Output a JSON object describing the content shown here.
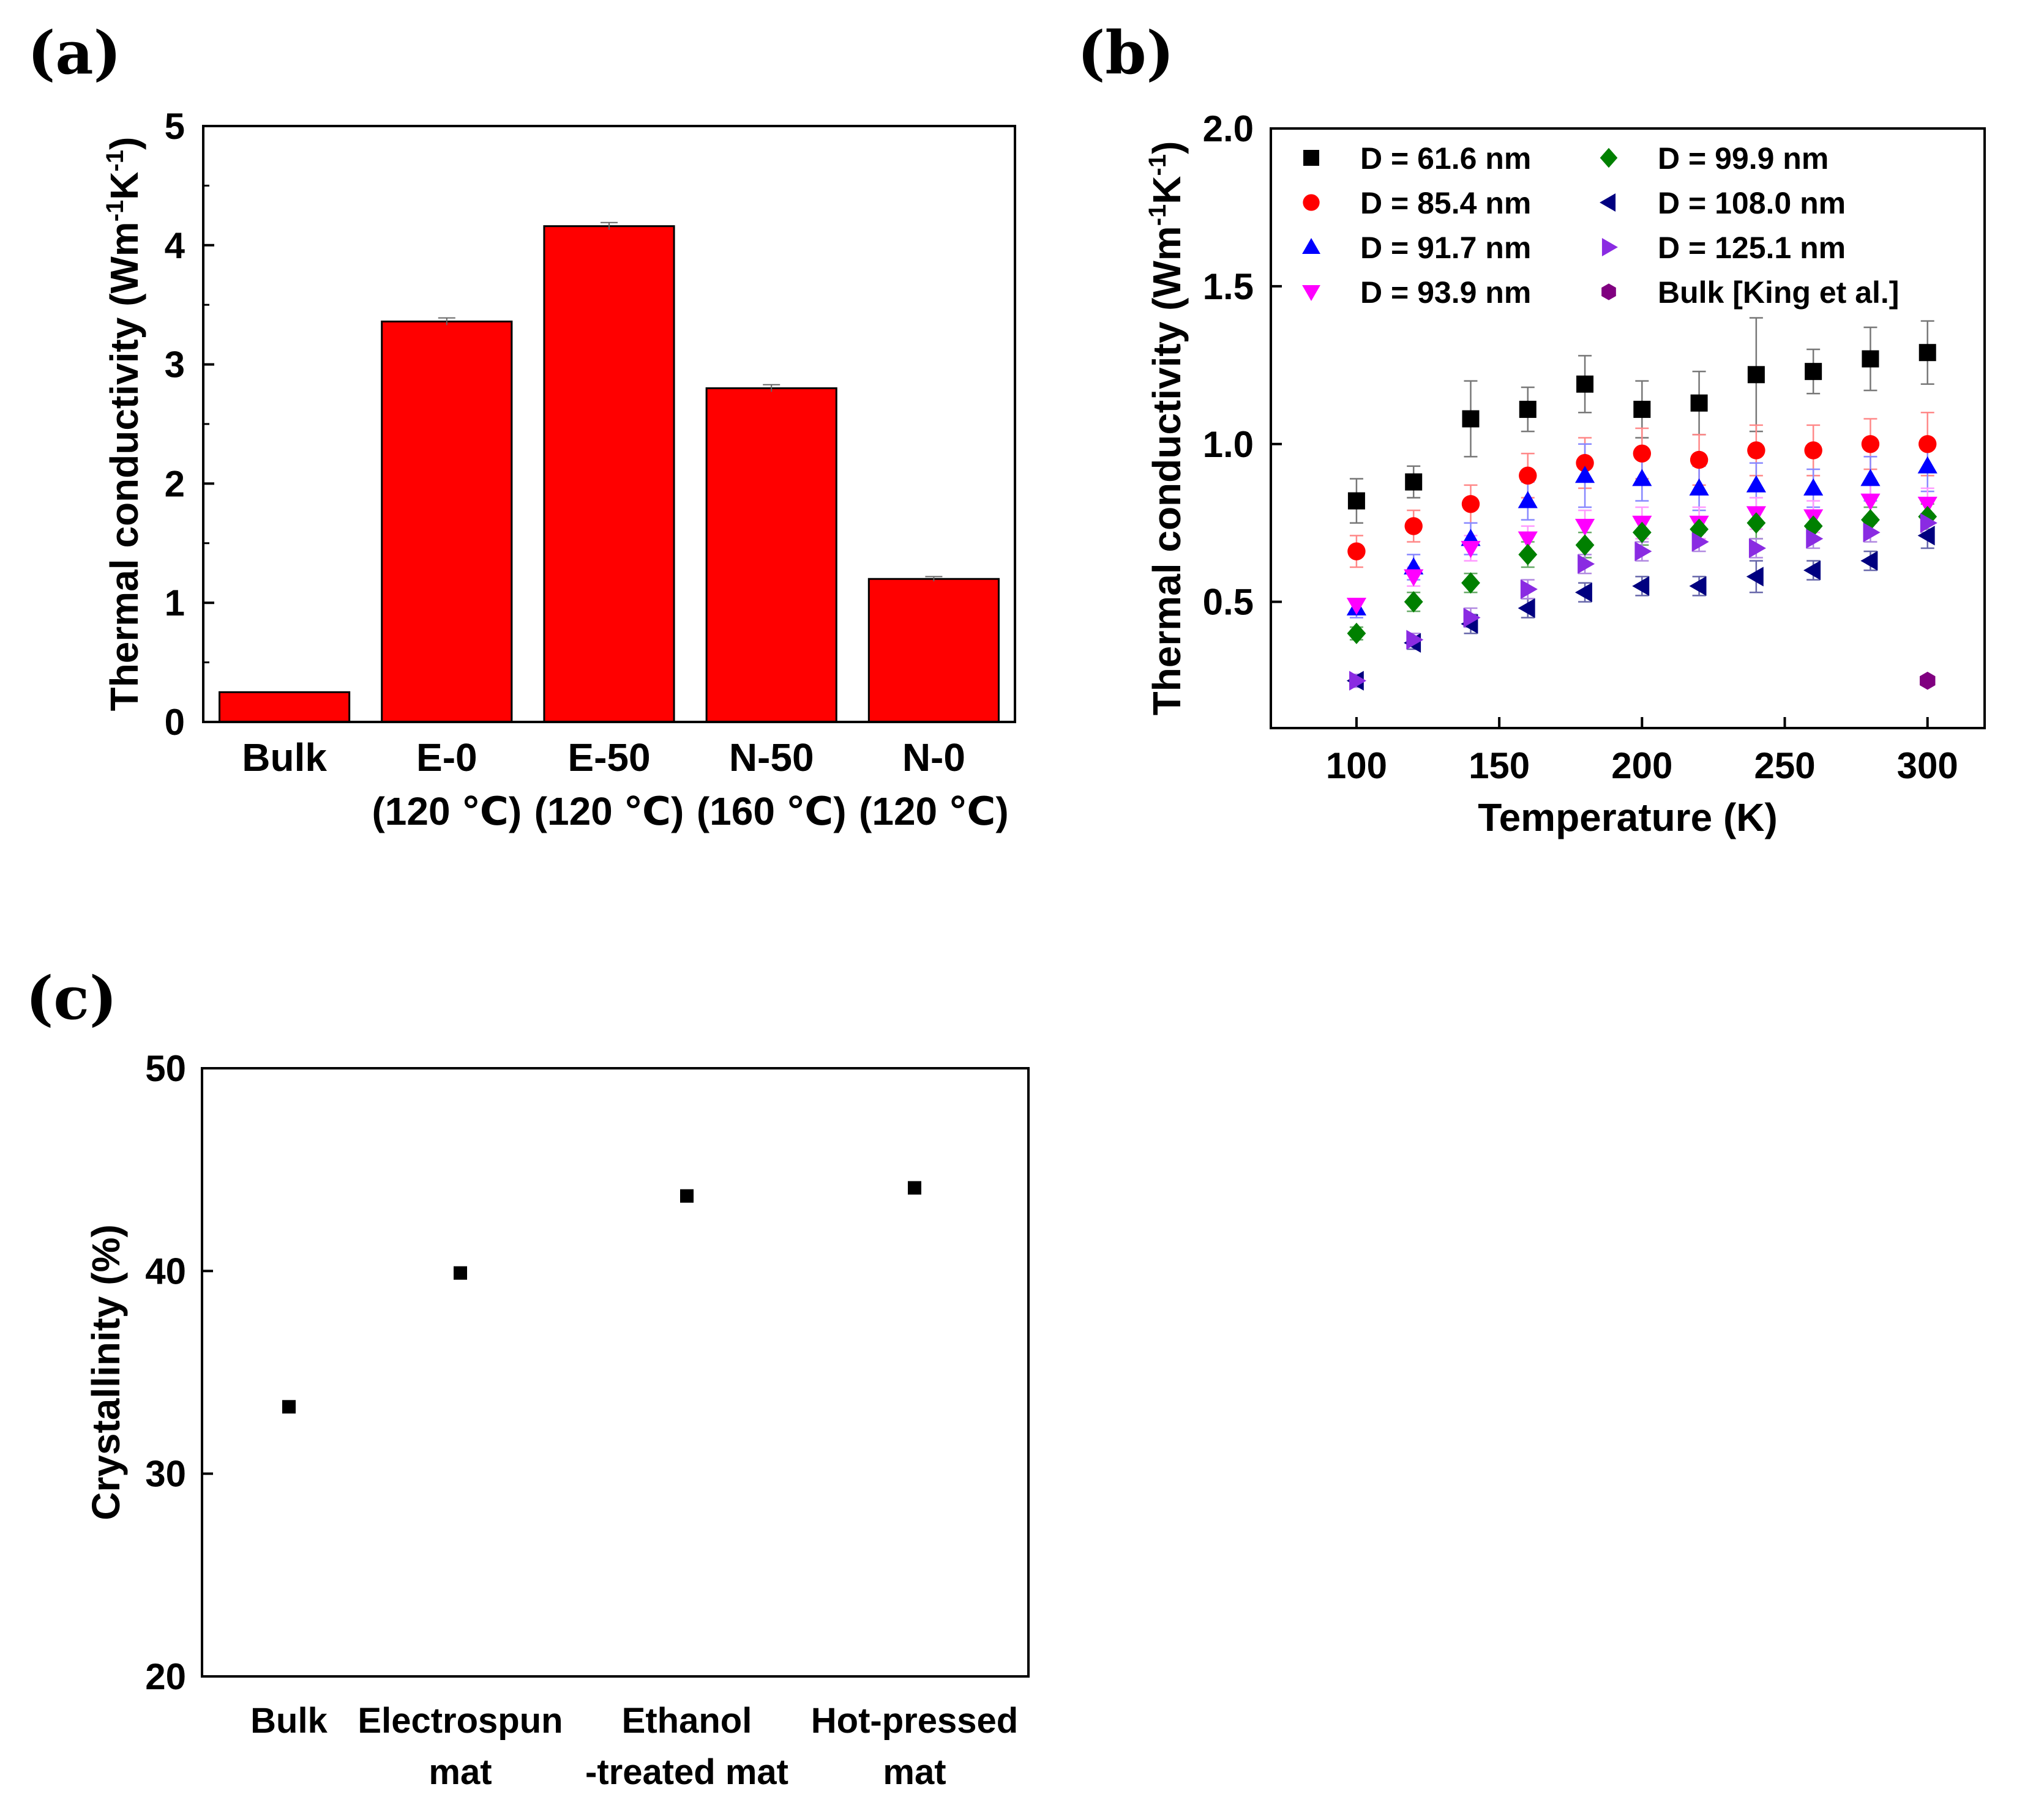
{
  "chart_data": [
    {
      "panel": "(a)",
      "type": "bar",
      "title": "",
      "xlabel": "",
      "ylabel": "Thermal conductivity (Wm-1K-1)",
      "ylabel_parts": {
        "base": "Thermal conductivity (Wm",
        "exp1": "-1",
        "mid": "K",
        "exp2": "-1",
        "end": ")"
      },
      "ylim": [
        0,
        5
      ],
      "yticks": [
        0,
        1,
        2,
        3,
        4,
        5
      ],
      "categories": [
        {
          "name": "Bulk",
          "condition": ""
        },
        {
          "name": "E-0",
          "condition": "(120 ℃)"
        },
        {
          "name": "E-50",
          "condition": "(120 ℃)"
        },
        {
          "name": "N-50",
          "condition": "(160 ℃)"
        },
        {
          "name": "N-0",
          "condition": "(120 ℃)"
        }
      ],
      "values": [
        0.25,
        3.36,
        4.16,
        2.8,
        1.2
      ],
      "errors": [
        0.0,
        0.03,
        0.03,
        0.03,
        0.02
      ],
      "bar_color": "#ff0000"
    },
    {
      "panel": "(b)",
      "type": "scatter",
      "title": "",
      "xlabel": "Temperature (K)",
      "ylabel": "Thermal conductivity (Wm-1K-1)",
      "ylabel_parts": {
        "base": "Thermal conductivity (Wm",
        "exp1": "-1",
        "mid": "K",
        "exp2": "-1",
        "end": ")"
      },
      "xlim": [
        70,
        320
      ],
      "ylim": [
        0.1,
        2.0
      ],
      "xticks": [
        100,
        150,
        200,
        250,
        300
      ],
      "yticks": [
        "0.5",
        "1.0",
        "1.5",
        "2.0"
      ],
      "legend_position": "top-left",
      "series": [
        {
          "name": "D = 61.6 nm",
          "color": "#000000",
          "marker": "square",
          "x": [
            100,
            120,
            140,
            160,
            180,
            200,
            220,
            240,
            260,
            280,
            300
          ],
          "y": [
            0.82,
            0.88,
            1.08,
            1.11,
            1.19,
            1.11,
            1.13,
            1.22,
            1.23,
            1.27,
            1.29
          ],
          "err": [
            0.07,
            0.05,
            0.12,
            0.07,
            0.09,
            0.09,
            0.1,
            0.18,
            0.07,
            0.1,
            0.1
          ]
        },
        {
          "name": "D = 85.4 nm",
          "color": "#ff0000",
          "marker": "circle",
          "x": [
            100,
            120,
            140,
            160,
            180,
            200,
            220,
            240,
            260,
            280,
            300
          ],
          "y": [
            0.66,
            0.74,
            0.81,
            0.9,
            0.94,
            0.97,
            0.95,
            0.98,
            0.98,
            1.0,
            1.0
          ],
          "err": [
            0.05,
            0.05,
            0.06,
            0.07,
            0.08,
            0.08,
            0.08,
            0.08,
            0.08,
            0.08,
            0.1
          ]
        },
        {
          "name": "D = 91.7 nm",
          "color": "#0000ff",
          "marker": "triangle-up",
          "x": [
            100,
            120,
            140,
            160,
            180,
            200,
            220,
            240,
            260,
            280,
            300
          ],
          "y": [
            0.48,
            0.61,
            0.7,
            0.82,
            0.9,
            0.89,
            0.86,
            0.87,
            0.86,
            0.89,
            0.93
          ],
          "err": [
            0.03,
            0.04,
            0.05,
            0.06,
            0.1,
            0.07,
            0.07,
            0.07,
            0.06,
            0.07,
            0.08
          ]
        },
        {
          "name": "D = 93.9 nm",
          "color": "#ff00ff",
          "marker": "triangle-down",
          "x": [
            100,
            120,
            140,
            160,
            180,
            200,
            220,
            240,
            260,
            280,
            300
          ],
          "y": [
            0.49,
            0.58,
            0.67,
            0.7,
            0.74,
            0.75,
            0.75,
            0.78,
            0.77,
            0.82,
            0.81
          ],
          "err": [
            0.02,
            0.03,
            0.04,
            0.04,
            0.05,
            0.05,
            0.05,
            0.05,
            0.05,
            0.05,
            0.05
          ]
        },
        {
          "name": "D = 99.9 nm",
          "color": "#008000",
          "marker": "diamond",
          "x": [
            100,
            120,
            140,
            160,
            180,
            200,
            220,
            240,
            260,
            280,
            300
          ],
          "y": [
            0.4,
            0.5,
            0.56,
            0.65,
            0.68,
            0.72,
            0.73,
            0.75,
            0.74,
            0.76,
            0.77
          ],
          "err": [
            0.02,
            0.03,
            0.03,
            0.04,
            0.04,
            0.04,
            0.04,
            0.05,
            0.04,
            0.04,
            0.04
          ]
        },
        {
          "name": "D = 108.0 nm",
          "color": "#000080",
          "marker": "triangle-left",
          "x": [
            100,
            120,
            140,
            160,
            180,
            200,
            220,
            240,
            260,
            280,
            300
          ],
          "y": [
            0.25,
            0.37,
            0.43,
            0.48,
            0.53,
            0.55,
            0.55,
            0.58,
            0.6,
            0.63,
            0.71
          ],
          "err": [
            0.02,
            0.02,
            0.03,
            0.03,
            0.03,
            0.03,
            0.03,
            0.05,
            0.03,
            0.03,
            0.04
          ]
        },
        {
          "name": "D = 125.1 nm",
          "color": "#8a2be2",
          "marker": "triangle-right",
          "x": [
            100,
            120,
            140,
            160,
            180,
            200,
            220,
            240,
            260,
            280,
            300
          ],
          "y": [
            0.25,
            0.38,
            0.45,
            0.54,
            0.62,
            0.66,
            0.69,
            0.67,
            0.7,
            0.72,
            0.75
          ],
          "err": [
            0.02,
            0.02,
            0.03,
            0.03,
            0.03,
            0.03,
            0.03,
            0.03,
            0.03,
            0.03,
            0.03
          ]
        },
        {
          "name": "Bulk [King et al.]",
          "color": "#800080",
          "marker": "hexagon",
          "x": [
            300
          ],
          "y": [
            0.25
          ],
          "err": [
            0
          ]
        }
      ]
    },
    {
      "panel": "(c)",
      "type": "scatter",
      "title": "",
      "xlabel": "",
      "ylabel": "Crystallinity (%)",
      "ylim": [
        20,
        50
      ],
      "yticks": [
        20,
        30,
        40,
        50
      ],
      "categories": [
        {
          "line1": "Bulk",
          "line2": ""
        },
        {
          "line1": "Electrospun",
          "line2": "mat"
        },
        {
          "line1": "Ethanol",
          "line2": "-treated mat"
        },
        {
          "line1": "Hot-pressed",
          "line2": "mat"
        }
      ],
      "values": [
        33.3,
        39.9,
        43.7,
        44.1
      ],
      "marker_color": "#000000"
    }
  ]
}
